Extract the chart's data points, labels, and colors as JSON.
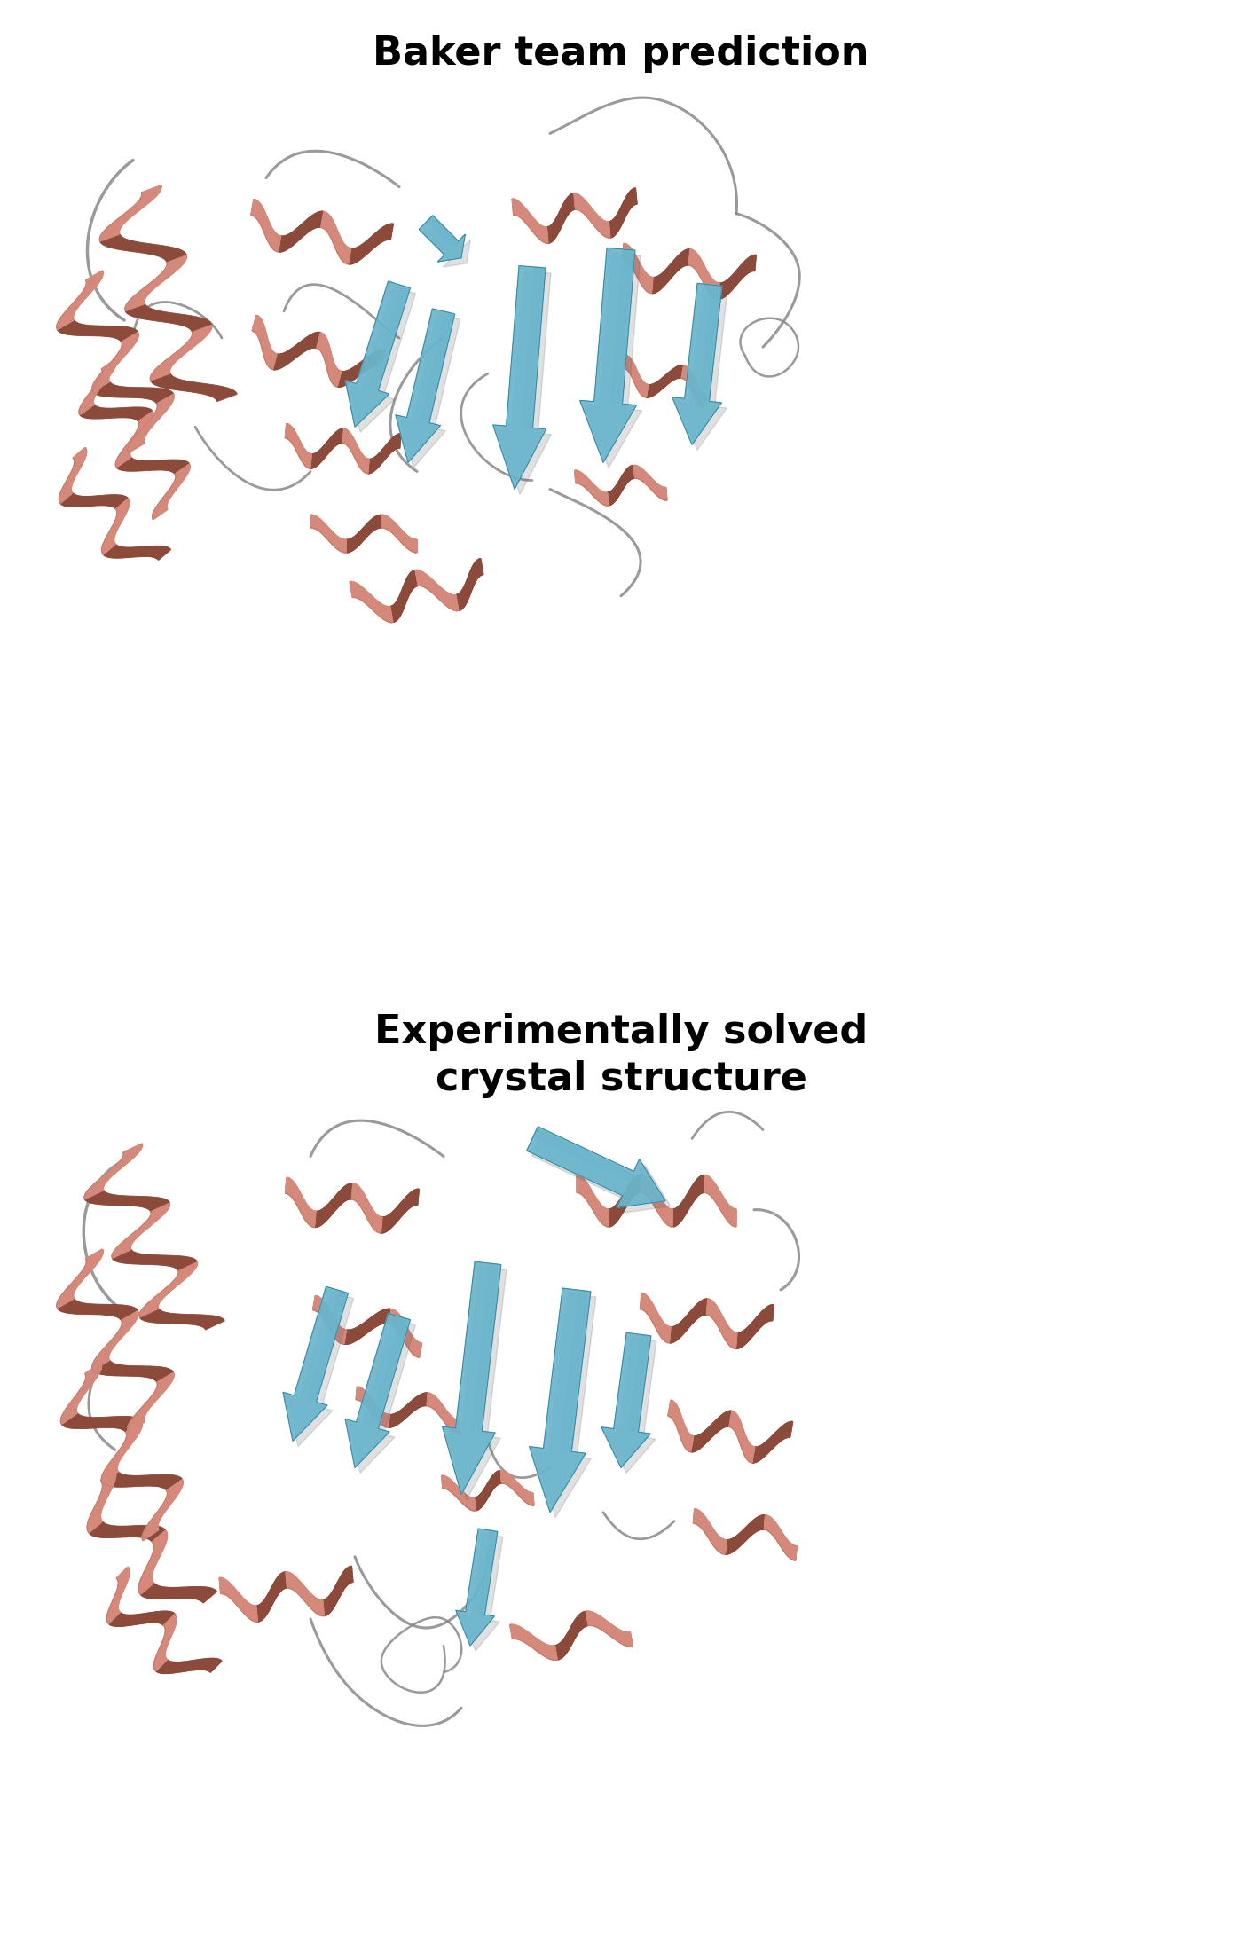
{
  "title1": "Baker team prediction",
  "title2": "Experimentally solved\ncrystal structure",
  "title_fontsize": 32,
  "title_fontweight": "bold",
  "bg_color": "#ffffff",
  "helix_color_light": "#D4897A",
  "helix_color_mid": "#C07060",
  "helix_color_dark": "#8B4A3A",
  "sheet_color_light": "#6AB5CC",
  "sheet_color_mid": "#4A9BB5",
  "sheet_color_dark": "#2A7A95",
  "loop_color": "#888888",
  "fig_width": 14.0,
  "fig_height": 22.06,
  "dpi": 100
}
